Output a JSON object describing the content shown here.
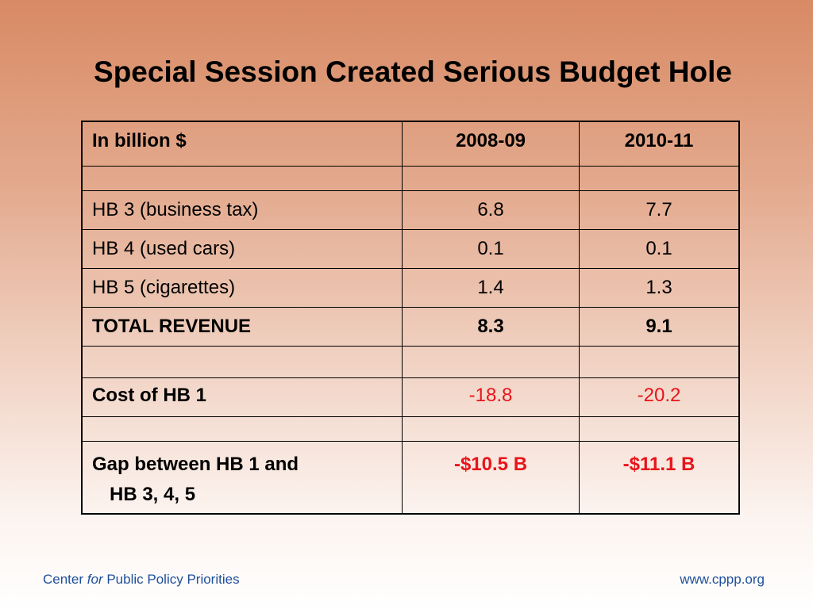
{
  "title": "Special Session Created Serious Budget Hole",
  "table": {
    "header": {
      "label": "In billion $",
      "col1": "2008-09",
      "col2": "2010-11"
    },
    "rows": [
      {
        "label": "HB 3 (business tax)",
        "col1": "6.8",
        "col2": "7.7"
      },
      {
        "label": "HB 4 (used cars)",
        "col1": "0.1",
        "col2": "0.1"
      },
      {
        "label": "HB 5 (cigarettes)",
        "col1": "1.4",
        "col2": "1.3"
      }
    ],
    "total": {
      "label": "TOTAL REVENUE",
      "col1": "8.3",
      "col2": "9.1"
    },
    "cost": {
      "label": "Cost of HB 1",
      "col1": "-18.8",
      "col2": "-20.2"
    },
    "gap": {
      "label_line1": "Gap between HB 1 and",
      "label_line2": "HB 3, 4, 5",
      "col1": "-$10.5 B",
      "col2": "-$11.1 B"
    }
  },
  "footer": {
    "org_prefix": "Center",
    "org_italic": "for",
    "org_suffix": "Public Policy Priorities",
    "url": "www.cppp.org"
  },
  "colors": {
    "negative": "#e8141b",
    "footer_text": "#1f4f9a",
    "background_top": "#d88a64",
    "background_bottom": "#ffffff"
  }
}
